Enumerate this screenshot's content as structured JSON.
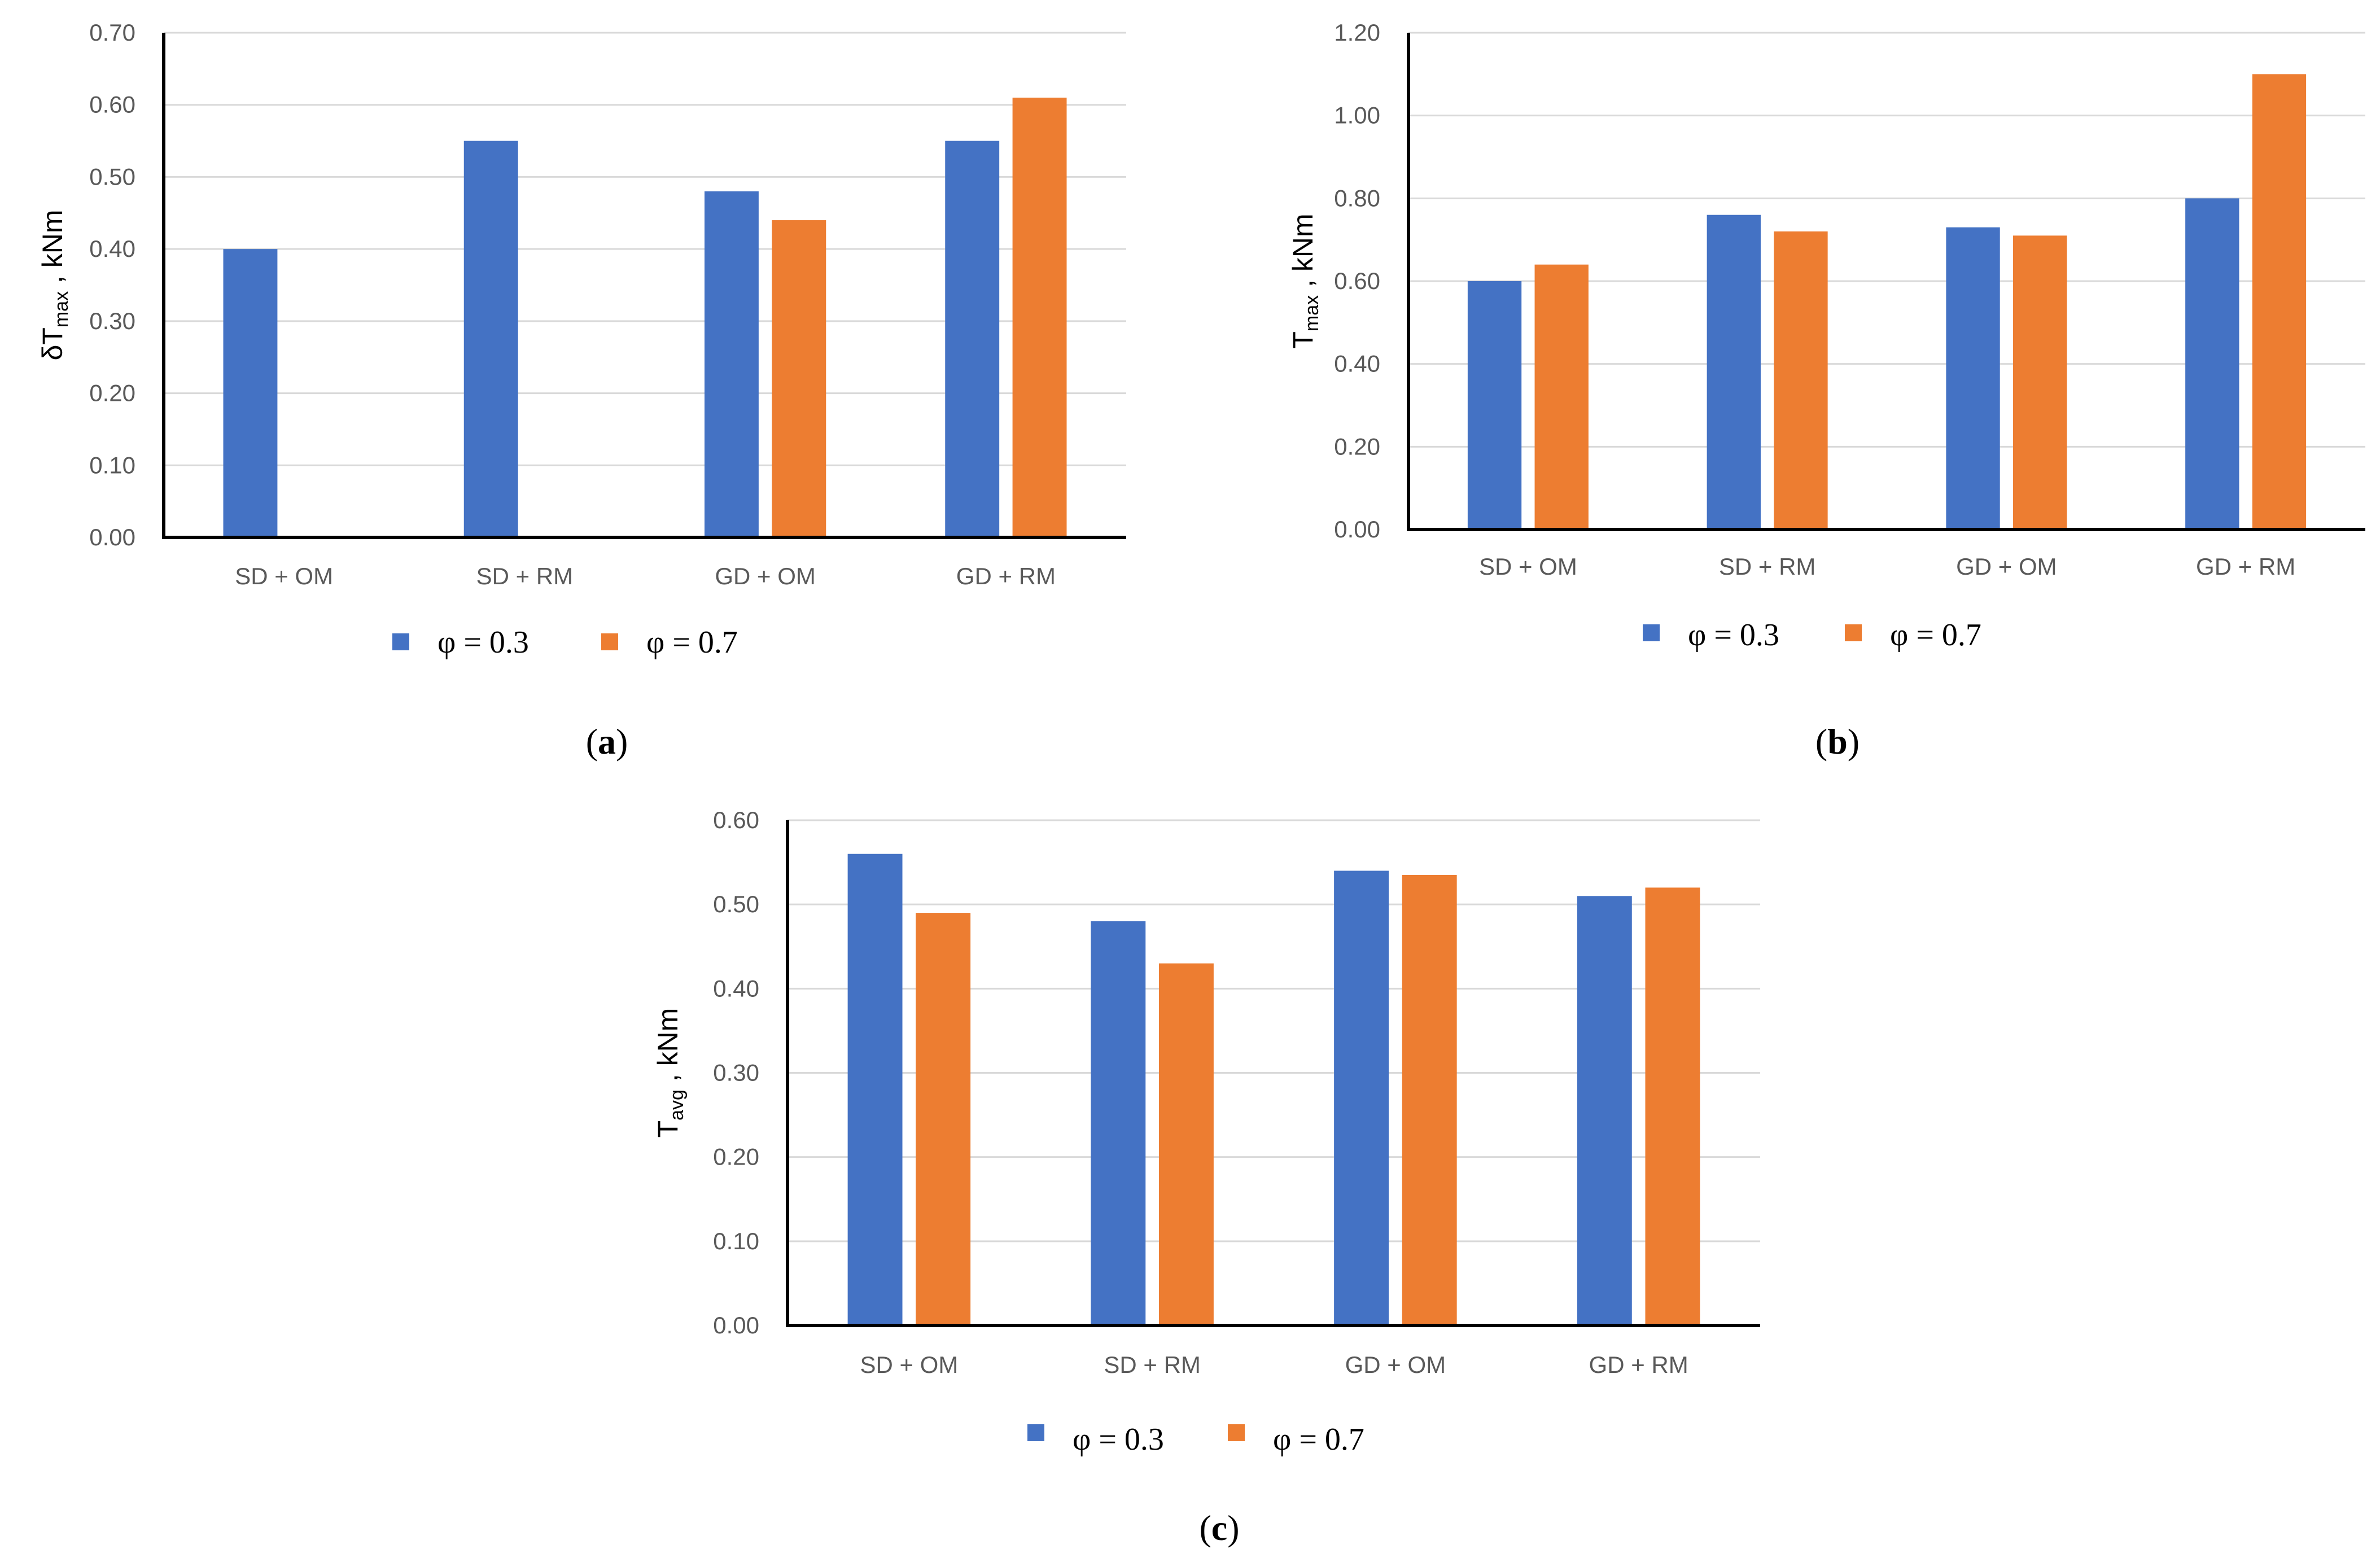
{
  "chart_data": [
    {
      "type": "bar",
      "caption_letter": "a",
      "ylabel_main": "δT",
      "ylabel_sub": "max",
      "ylabel_rest": " , kNm",
      "categories": [
        "SD + OM",
        "SD + RM",
        "GD + OM",
        "GD + RM"
      ],
      "series": [
        {
          "name": "φ = 0.3",
          "color": "#4472C4",
          "values": [
            0.4,
            0.55,
            0.48,
            0.55
          ]
        },
        {
          "name": "φ = 0.7",
          "color": "#ED7D31",
          "values": [
            null,
            null,
            0.44,
            0.61
          ]
        }
      ],
      "ylim": [
        0,
        0.7
      ],
      "yticks": [
        "0.00",
        "0.10",
        "0.20",
        "0.30",
        "0.40",
        "0.50",
        "0.60",
        "0.70"
      ],
      "grid": true,
      "legend": "bottom"
    },
    {
      "type": "bar",
      "caption_letter": "b",
      "ylabel_main": "T",
      "ylabel_sub": "max",
      "ylabel_rest": " , kNm",
      "categories": [
        "SD + OM",
        "SD + RM",
        "GD + OM",
        "GD + RM"
      ],
      "series": [
        {
          "name": "φ = 0.3",
          "color": "#4472C4",
          "values": [
            0.6,
            0.76,
            0.73,
            0.8
          ]
        },
        {
          "name": "φ = 0.7",
          "color": "#ED7D31",
          "values": [
            0.64,
            0.72,
            0.71,
            1.1
          ]
        }
      ],
      "ylim": [
        0,
        1.2
      ],
      "yticks": [
        "0.00",
        "0.20",
        "0.40",
        "0.60",
        "0.80",
        "1.00",
        "1.20"
      ],
      "grid": true,
      "legend": "bottom"
    },
    {
      "type": "bar",
      "caption_letter": "c",
      "ylabel_main": "T",
      "ylabel_sub": "avg",
      "ylabel_rest": " , kNm",
      "categories": [
        "SD + OM",
        "SD + RM",
        "GD + OM",
        "GD + RM"
      ],
      "series": [
        {
          "name": "φ = 0.3",
          "color": "#4472C4",
          "values": [
            0.56,
            0.48,
            0.54,
            0.51
          ]
        },
        {
          "name": "φ = 0.7",
          "color": "#ED7D31",
          "values": [
            0.49,
            0.43,
            0.535,
            0.52
          ]
        }
      ],
      "ylim": [
        0,
        0.6
      ],
      "yticks": [
        "0.00",
        "0.10",
        "0.20",
        "0.30",
        "0.40",
        "0.50",
        "0.60"
      ],
      "grid": true,
      "legend": "bottom"
    }
  ]
}
